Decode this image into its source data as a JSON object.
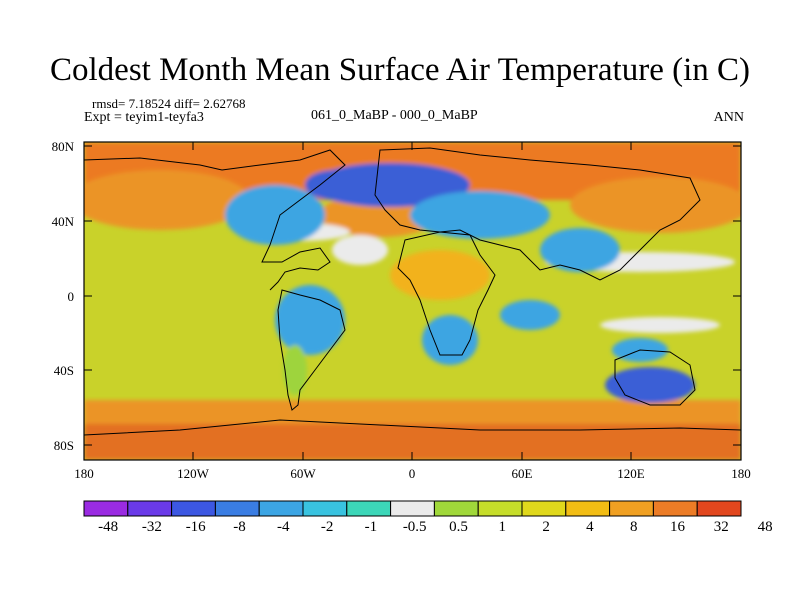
{
  "title": "Coldest Month Mean Surface Air Temperature (in C)",
  "stats": "rmsd= 7.18524  diff= 2.62768",
  "experiment": "Expt = teyim1-teyfa3",
  "difference_label": "061_0_MaBP - 000_0_MaBP",
  "season": "ANN",
  "lat_labels": [
    "80N",
    "40N",
    "0",
    "40S",
    "80S"
  ],
  "lon_labels": [
    "180",
    "120W",
    "60W",
    "0",
    "60E",
    "120E",
    "180"
  ],
  "colorbar": {
    "labels": [
      "-48",
      "-32",
      "-16",
      "-8",
      "-4",
      "-2",
      "-1",
      "-0.5",
      "0.5",
      "1",
      "2",
      "4",
      "8",
      "16",
      "32",
      "48"
    ],
    "colors": [
      "#9a2be2",
      "#6a3ae8",
      "#3c57e2",
      "#3a7de3",
      "#3ca5e4",
      "#39c3e0",
      "#3cd6b8",
      "#ebebeb",
      "#a0d83a",
      "#c6dd2a",
      "#e0d81c",
      "#f2bd14",
      "#f0a022",
      "#ec7c26",
      "#e2471e"
    ]
  },
  "map_colors": {
    "ocean_default": "#c9d22a",
    "warm_band": "#eb9426",
    "hot_band": "#e36f22",
    "arctic_ocean": "#ec7a22",
    "ice_blue": "#3b5fd6",
    "cool_blue": "#3ea5e2",
    "pale": "#ebebeb",
    "land_green": "#9ed43c",
    "land_orange": "#f2b21a",
    "coast": "#000000"
  }
}
